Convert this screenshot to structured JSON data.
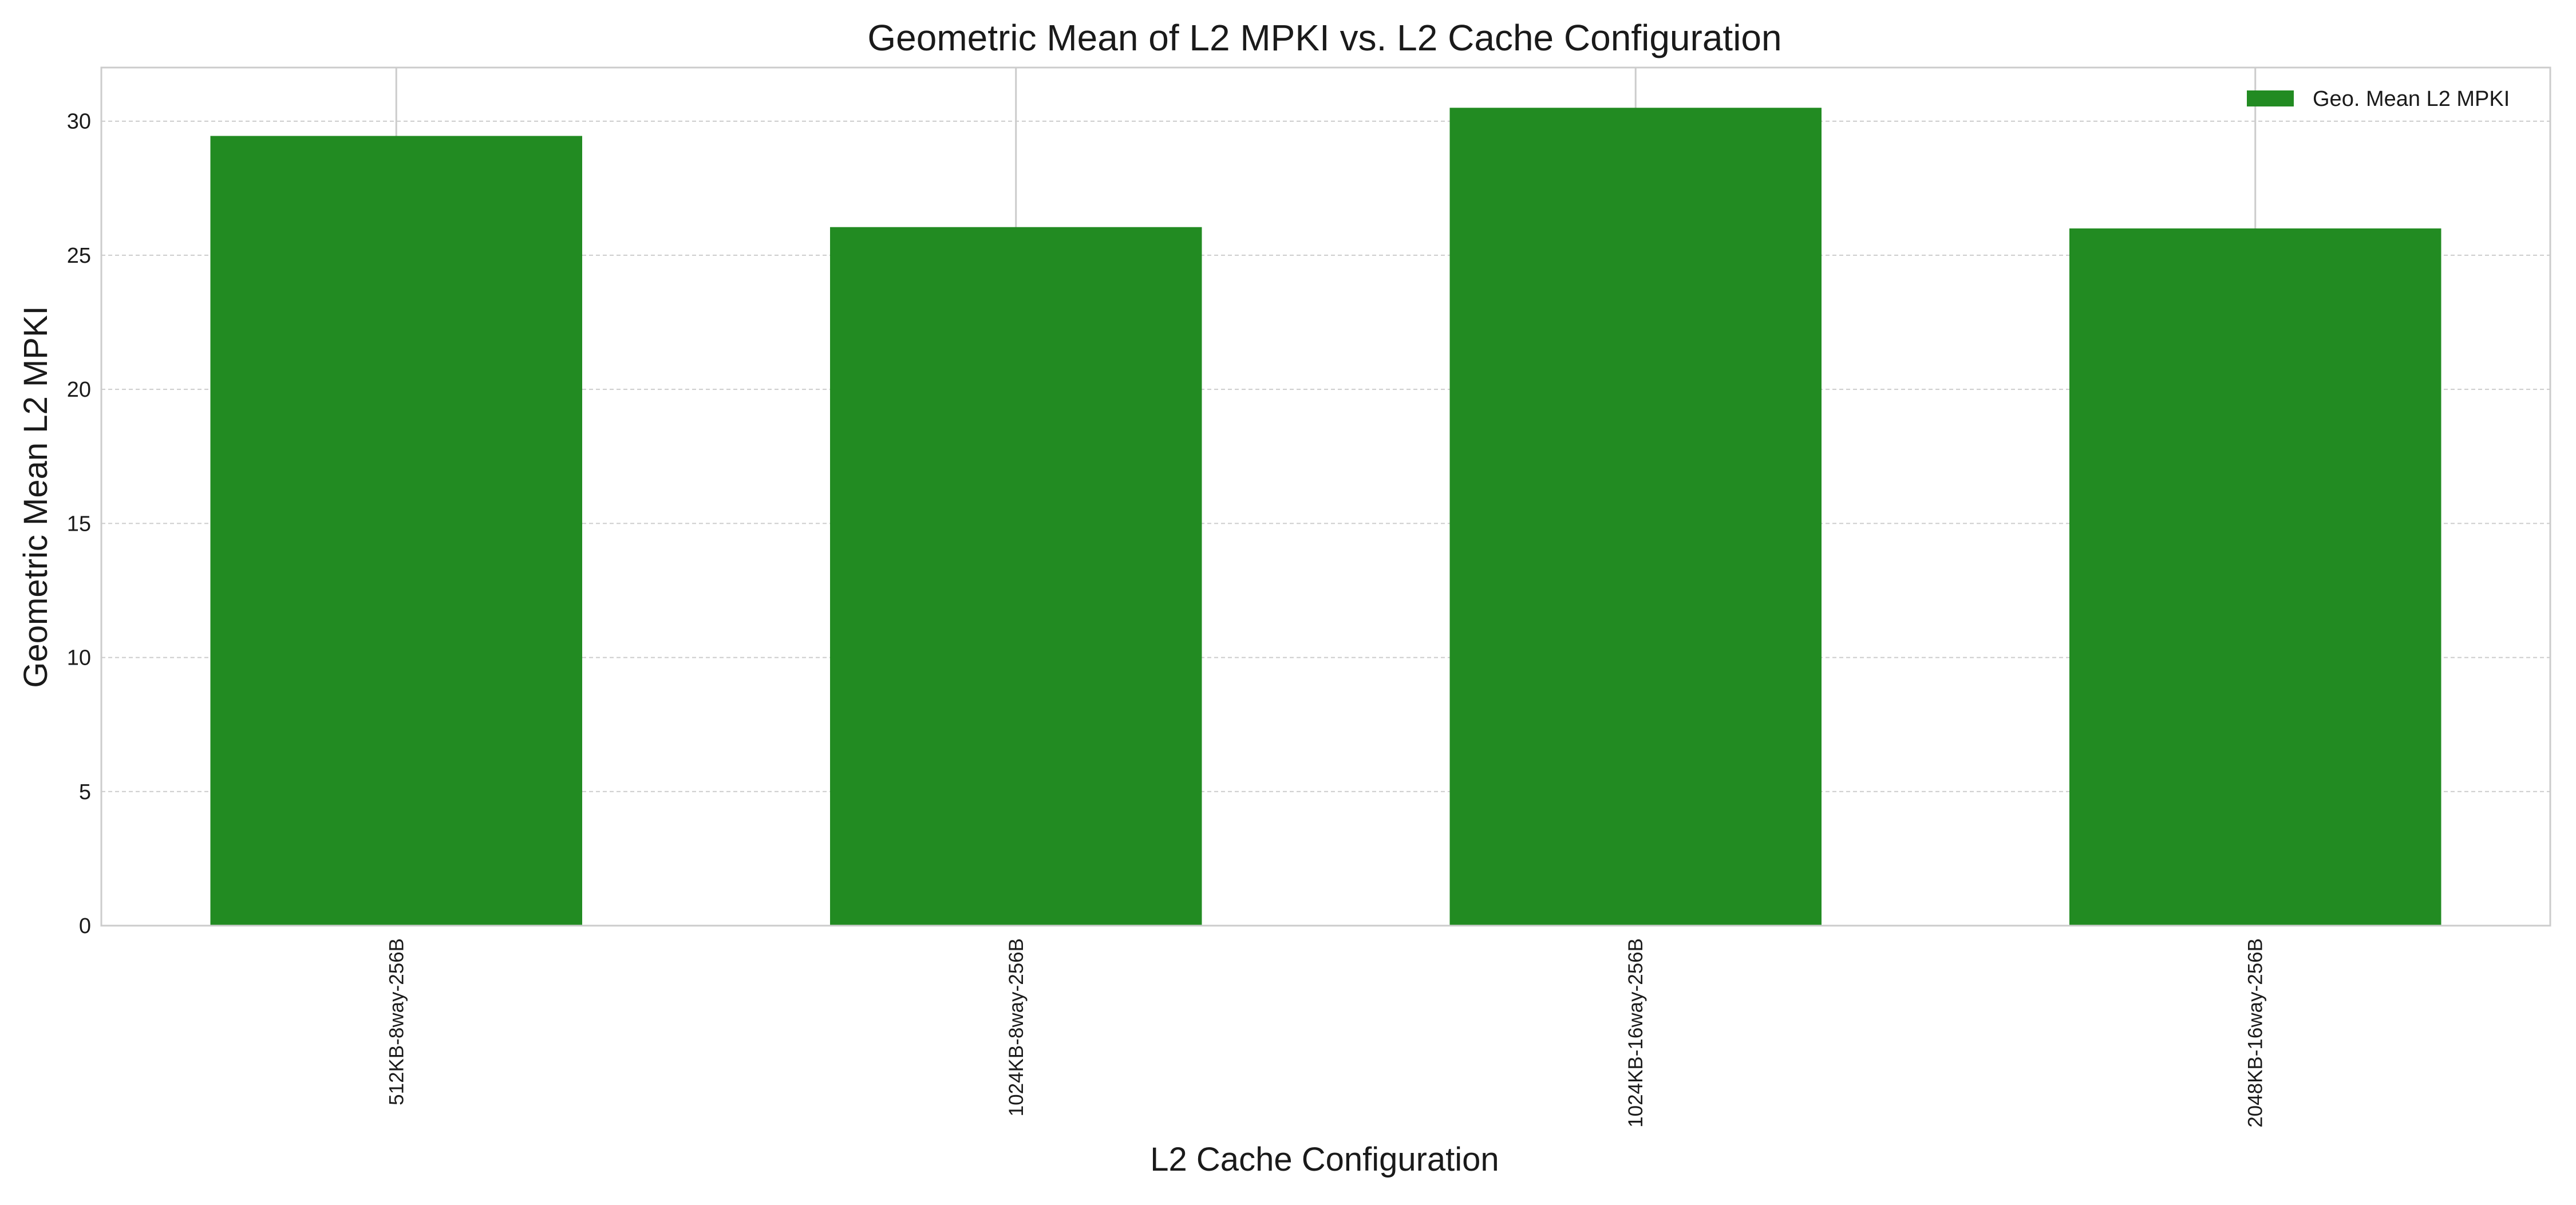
{
  "chart_data": {
    "type": "bar",
    "title": "Geometric Mean of L2 MPKI vs. L2 Cache Configuration",
    "xlabel": "L2 Cache Configuration",
    "ylabel": "Geometric Mean L2 MPKI",
    "categories": [
      "512KB-8way-256B",
      "1024KB-8way-256B",
      "1024KB-16way-256B",
      "2048KB-16way-256B"
    ],
    "series": [
      {
        "name": "Geo. Mean L2 MPKI",
        "values": [
          29.45,
          26.05,
          30.5,
          26.0
        ],
        "color": "#228b22"
      }
    ],
    "ylim": [
      0,
      32
    ],
    "yticks": [
      0,
      5,
      10,
      15,
      20,
      25,
      30
    ],
    "grid": true,
    "legend_position": "top-right"
  }
}
